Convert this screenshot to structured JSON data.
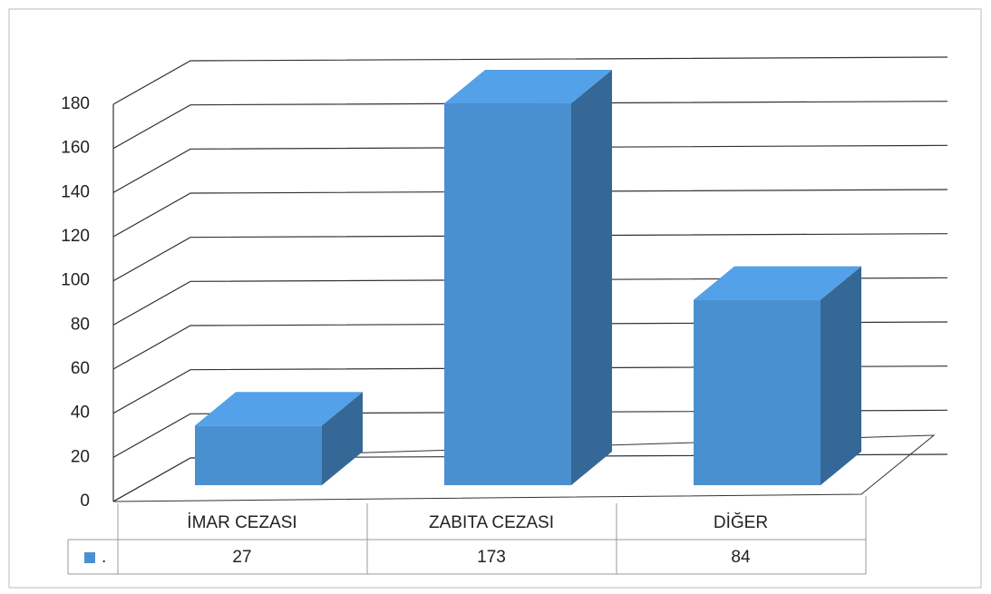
{
  "chart_data": {
    "type": "bar3d",
    "categories": [
      "İMAR CEZASI",
      "ZABITA CEZASI",
      "DİĞER"
    ],
    "series": [
      {
        "name": ".",
        "color": "#4a90d0",
        "values": [
          27,
          173,
          84
        ]
      }
    ],
    "ylim": [
      0,
      180
    ],
    "yticks": [
      0,
      20,
      40,
      60,
      80,
      100,
      120,
      140,
      160,
      180
    ],
    "grid": true
  }
}
